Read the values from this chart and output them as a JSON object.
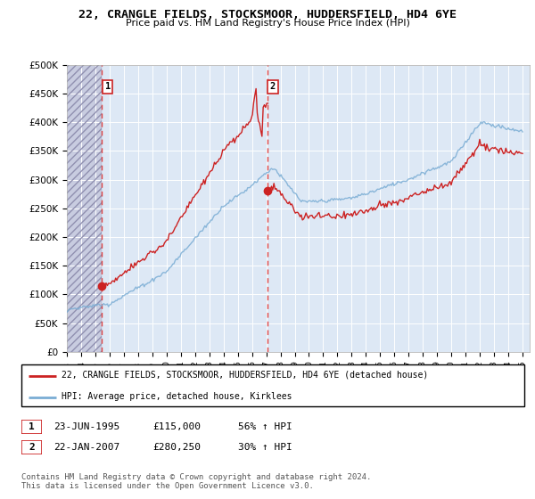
{
  "title": "22, CRANGLE FIELDS, STOCKSMOOR, HUDDERSFIELD, HD4 6YE",
  "subtitle": "Price paid vs. HM Land Registry's House Price Index (HPI)",
  "ylim": [
    0,
    500000
  ],
  "yticks": [
    0,
    50000,
    100000,
    150000,
    200000,
    250000,
    300000,
    350000,
    400000,
    450000,
    500000
  ],
  "ytick_labels": [
    "£0",
    "£50K",
    "£100K",
    "£150K",
    "£200K",
    "£250K",
    "£300K",
    "£350K",
    "£400K",
    "£450K",
    "£500K"
  ],
  "sale1_date": 1995.47,
  "sale1_price": 115000,
  "sale2_date": 2007.06,
  "sale2_price": 280250,
  "hpi_line_color": "#7aadd4",
  "price_line_color": "#cc2222",
  "dashed_line_color": "#dd4444",
  "legend_label1": "22, CRANGLE FIELDS, STOCKSMOOR, HUDDERSFIELD, HD4 6YE (detached house)",
  "legend_label2": "HPI: Average price, detached house, Kirklees",
  "table_row1": [
    "1",
    "23-JUN-1995",
    "£115,000",
    "56% ↑ HPI"
  ],
  "table_row2": [
    "2",
    "22-JAN-2007",
    "£280,250",
    "30% ↑ HPI"
  ],
  "footnote": "Contains HM Land Registry data © Crown copyright and database right 2024.\nThis data is licensed under the Open Government Licence v3.0.",
  "xstart": 1993.0,
  "xend": 2025.5
}
